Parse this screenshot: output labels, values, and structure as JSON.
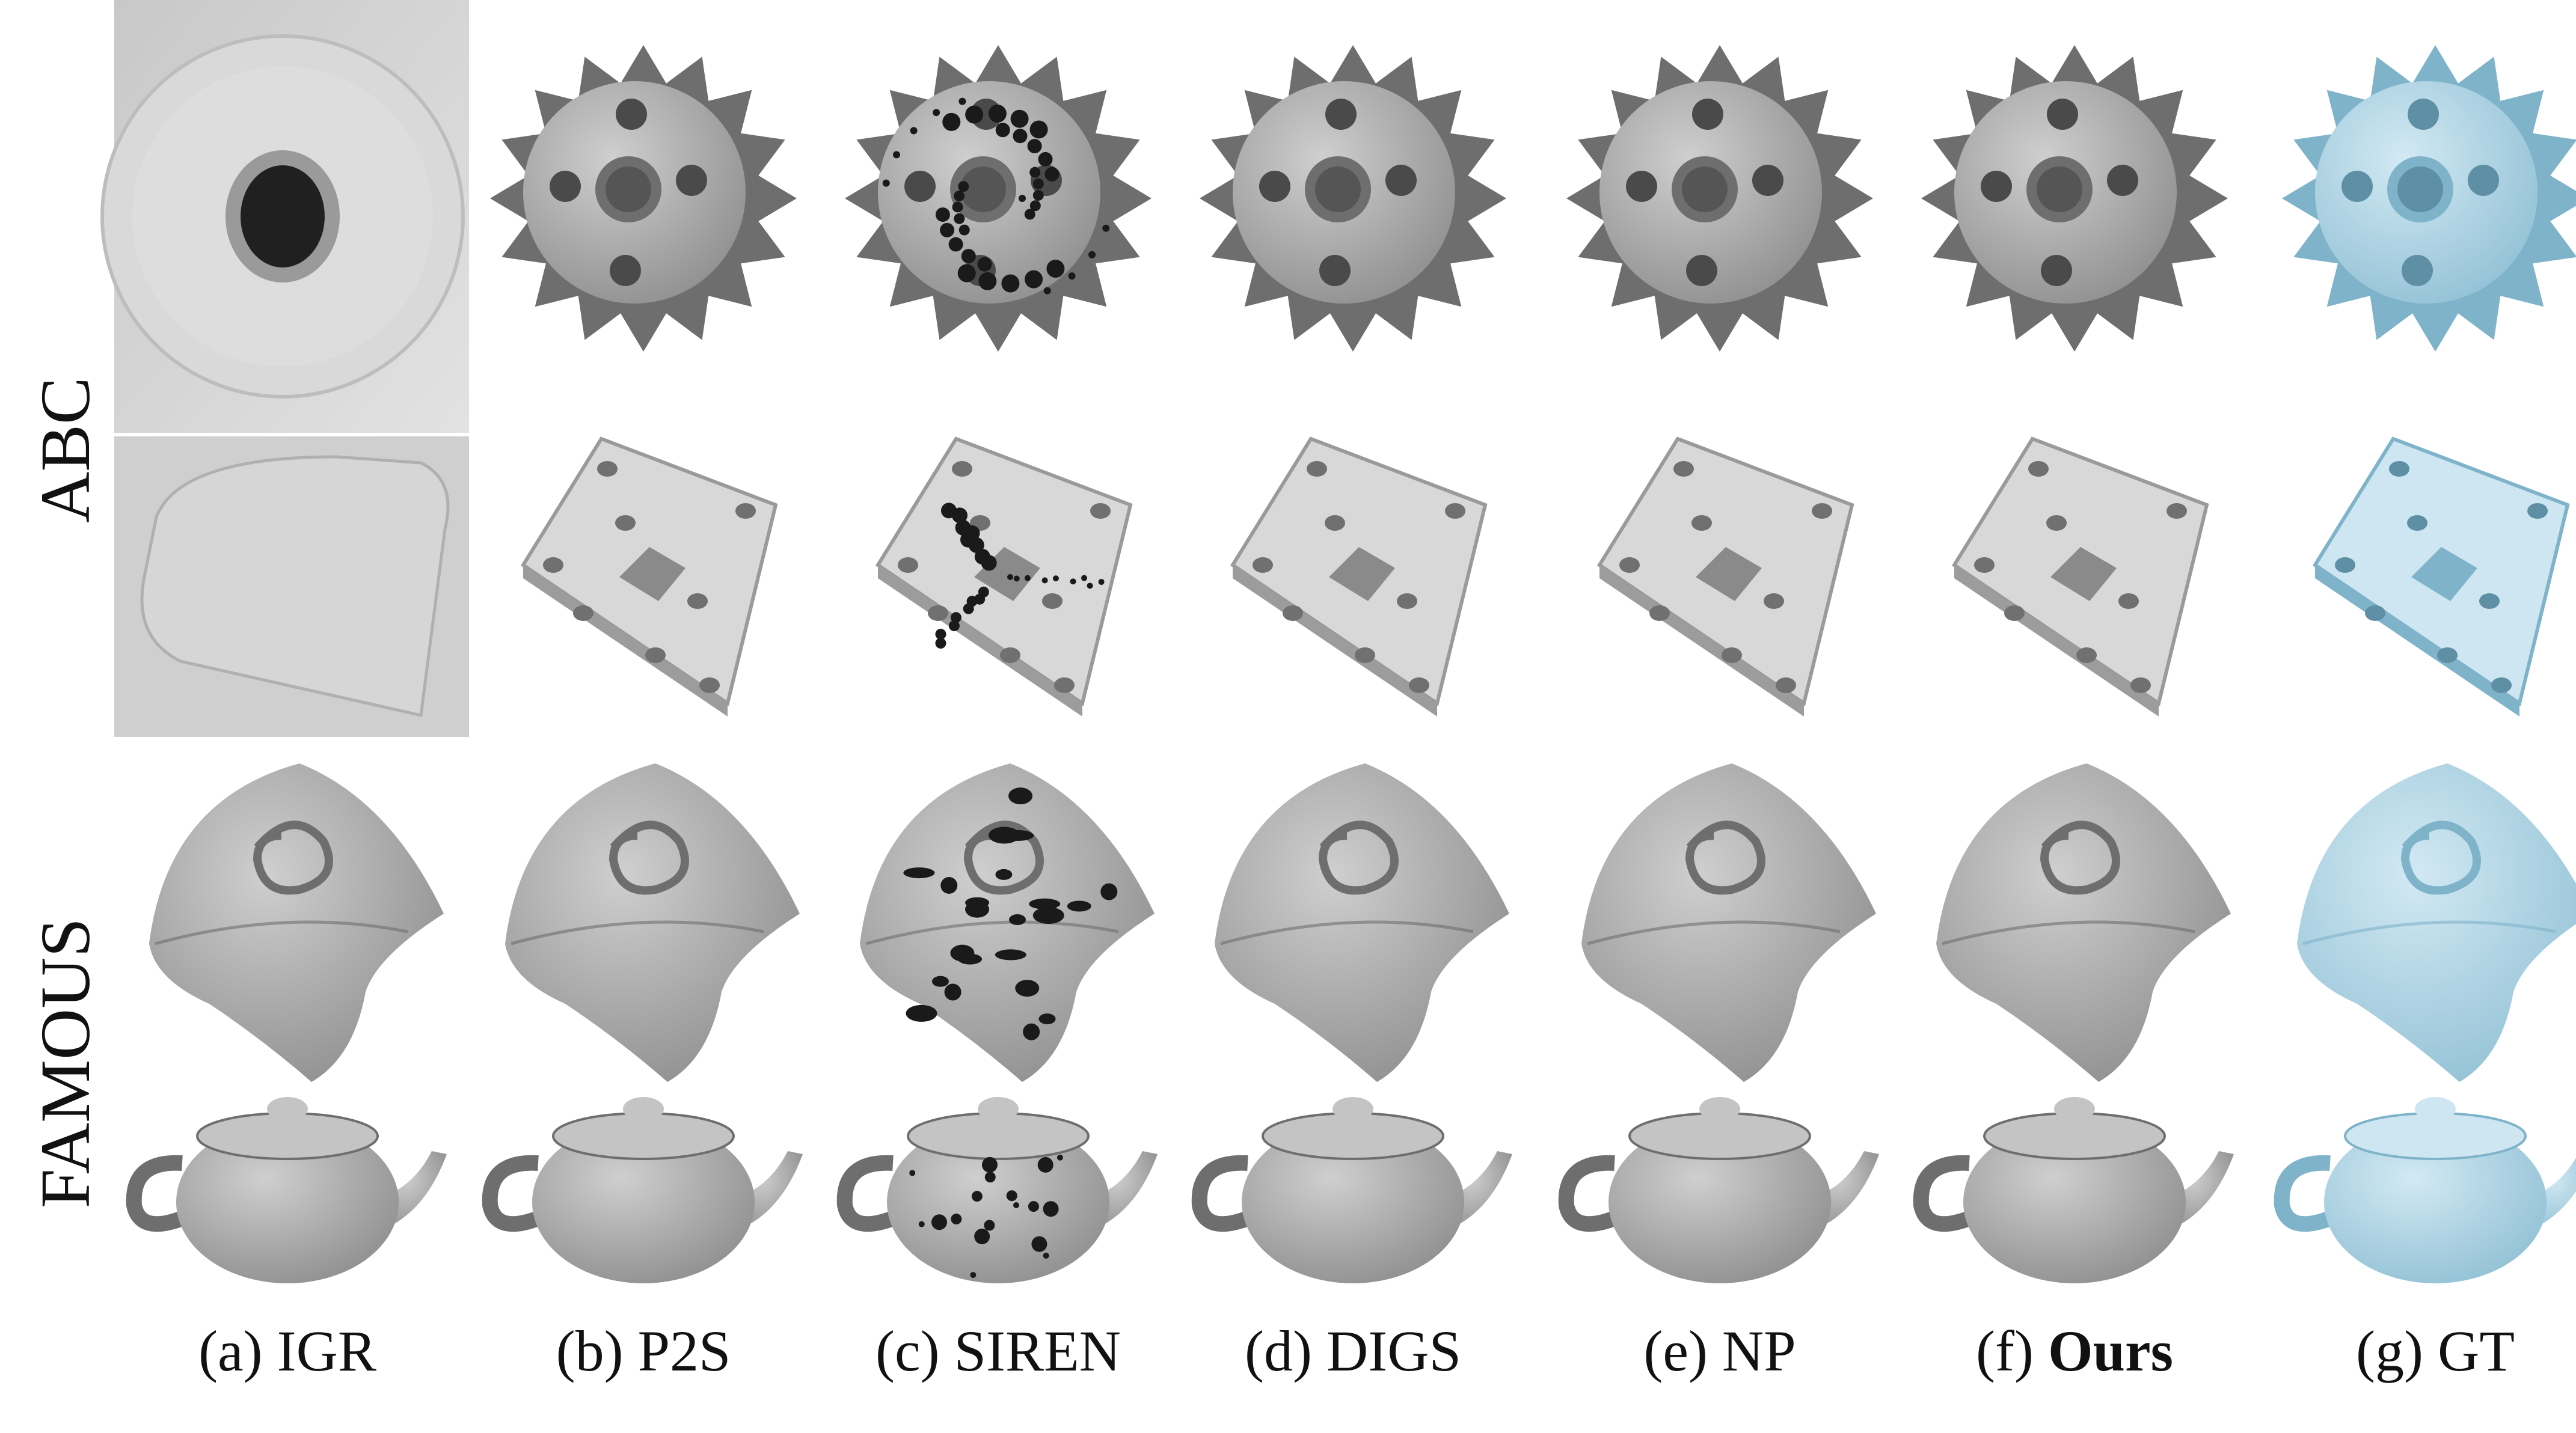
{
  "row_groups": [
    {
      "label": "ABC"
    },
    {
      "label": "FAMOUS"
    }
  ],
  "columns": [
    {
      "prefix": "(a)",
      "name": "IGR",
      "bold": false
    },
    {
      "prefix": "(b)",
      "name": "P2S",
      "bold": false
    },
    {
      "prefix": "(c)",
      "name": "SIREN",
      "bold": false
    },
    {
      "prefix": "(d)",
      "name": "DIGS",
      "bold": false
    },
    {
      "prefix": "(e)",
      "name": "NP",
      "bold": false
    },
    {
      "prefix": "(f)",
      "name": "Ours",
      "bold": true
    },
    {
      "prefix": "(g)",
      "name": "GT",
      "bold": false
    }
  ],
  "rows": [
    {
      "object": "gear"
    },
    {
      "object": "plate"
    },
    {
      "object": "spiral"
    },
    {
      "object": "teapot"
    }
  ],
  "colors": {
    "recon": "#9a9a9a",
    "recon_light": "#c4c4c4",
    "recon_dark": "#6e6e6e",
    "gt": "#a9cfe0",
    "gt_light": "#cde6f1",
    "gt_dark": "#7fb3ca",
    "hole": "#1a1a1a"
  }
}
